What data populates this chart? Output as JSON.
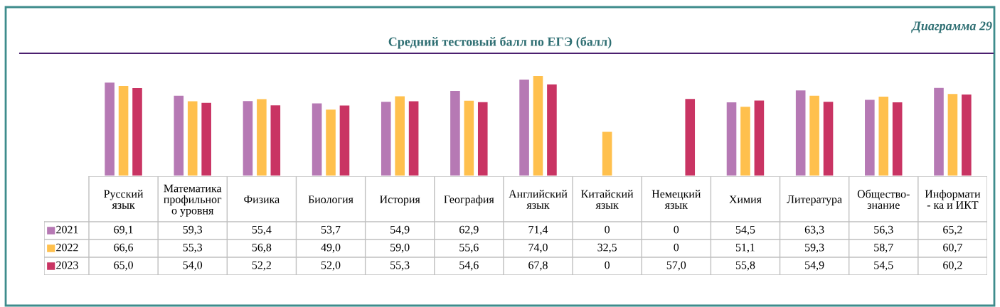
{
  "chart_data": {
    "type": "bar",
    "title": "Средний тестовый балл по ЕГЭ (балл)",
    "annotations": [
      "Диаграмма 29"
    ],
    "categories": [
      "Русский\nязык",
      "Математика\nпрофильног\nо уровня",
      "Физика",
      "Биология",
      "История",
      "География",
      "Английский\nязык",
      "Китайский\nязык",
      "Немецкий\nязык",
      "Химия",
      "Литература",
      "Общество-\nзнание",
      "Информати\n- ка и ИКТ"
    ],
    "legend": "bottom left",
    "series": [
      {
        "name": "2021",
        "color": "#b679b4",
        "values": [
          69.1,
          59.3,
          55.4,
          53.7,
          54.9,
          62.9,
          71.4,
          0,
          0,
          54.5,
          63.3,
          56.3,
          65.2
        ],
        "value_labels": [
          "69,1",
          "59,3",
          "55,4",
          "53,7",
          "54,9",
          "62,9",
          "71,4",
          "0",
          "0",
          "54,5",
          "63,3",
          "56,3",
          "65,2"
        ]
      },
      {
        "name": "2022",
        "color": "#ffc04d",
        "values": [
          66.6,
          55.3,
          56.8,
          49.0,
          59.0,
          55.6,
          74.0,
          32.5,
          0,
          51.1,
          59.3,
          58.7,
          60.7
        ],
        "value_labels": [
          "66,6",
          "55,3",
          "56,8",
          "49,0",
          "59,0",
          "55,6",
          "74,0",
          "32,5",
          "0",
          "51,1",
          "59,3",
          "58,7",
          "60,7"
        ]
      },
      {
        "name": "2023",
        "color": "#c93463",
        "values": [
          65.0,
          54.0,
          52.2,
          52.0,
          55.3,
          54.6,
          67.8,
          0,
          57.0,
          55.8,
          54.9,
          54.5,
          60.2
        ],
        "value_labels": [
          "65,0",
          "54,0",
          "52,2",
          "52,0",
          "55,3",
          "54,6",
          "67,8",
          "0",
          "57,0",
          "55,8",
          "54,9",
          "54,5",
          "60,2"
        ]
      }
    ]
  }
}
